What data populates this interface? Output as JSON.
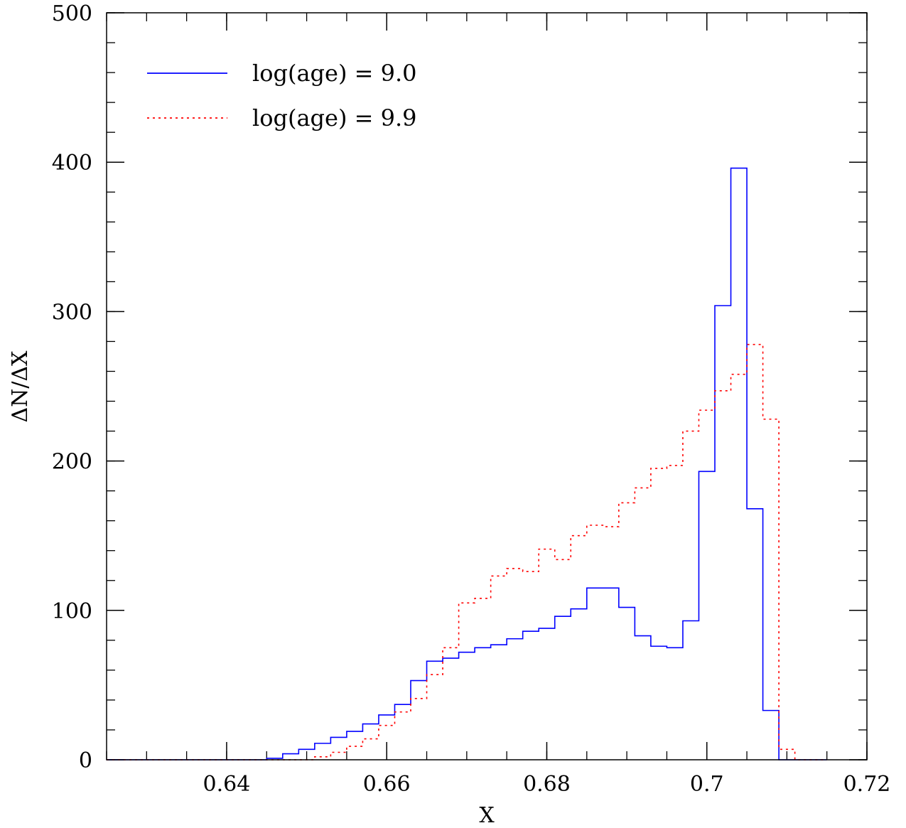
{
  "chart_data": {
    "type": "line",
    "xlabel": "X",
    "ylabel": "ΔN/ΔX",
    "xlim": [
      0.625,
      0.72
    ],
    "ylim": [
      0,
      500
    ],
    "xticks": [
      0.64,
      0.66,
      0.68,
      0.7,
      0.72
    ],
    "xtick_labels": [
      "0.64",
      "0.66",
      "0.68",
      "0.7",
      "0.72"
    ],
    "yticks": [
      0,
      100,
      200,
      300,
      400,
      500
    ],
    "ytick_labels": [
      "0",
      "100",
      "200",
      "300",
      "400",
      "500"
    ],
    "legend_position": "top-left",
    "grid": false,
    "step_style": "histogram",
    "bin_edges": [
      0.625,
      0.627,
      0.629,
      0.631,
      0.633,
      0.635,
      0.637,
      0.639,
      0.641,
      0.643,
      0.645,
      0.647,
      0.649,
      0.651,
      0.653,
      0.655,
      0.657,
      0.659,
      0.661,
      0.663,
      0.665,
      0.667,
      0.669,
      0.671,
      0.673,
      0.675,
      0.677,
      0.679,
      0.681,
      0.683,
      0.685,
      0.687,
      0.689,
      0.691,
      0.693,
      0.695,
      0.697,
      0.699,
      0.701,
      0.703,
      0.705,
      0.707,
      0.709,
      0.711,
      0.713,
      0.715
    ],
    "series": [
      {
        "name": "log(age) = 9.0",
        "color": "#0000ff",
        "dash": "solid",
        "values": [
          0,
          0,
          0,
          0,
          0,
          0,
          0,
          0,
          0,
          0,
          1,
          4,
          7,
          11,
          15,
          19,
          24,
          30,
          37,
          53,
          66,
          68,
          72,
          75,
          77,
          81,
          86,
          88,
          96,
          101,
          115,
          115,
          102,
          83,
          76,
          75,
          93,
          193,
          304,
          396,
          168,
          33,
          0,
          0,
          0
        ]
      },
      {
        "name": "log(age) = 9.9",
        "color": "#ff0000",
        "dash": "dotted",
        "values": [
          0,
          0,
          0,
          0,
          0,
          0,
          0,
          0,
          0,
          0,
          0,
          0,
          0,
          2,
          5,
          9,
          14,
          23,
          32,
          41,
          57,
          75,
          105,
          108,
          123,
          128,
          126,
          141,
          134,
          150,
          157,
          156,
          172,
          182,
          195,
          197,
          220,
          234,
          247,
          258,
          278,
          228,
          7,
          0,
          0
        ]
      }
    ]
  }
}
